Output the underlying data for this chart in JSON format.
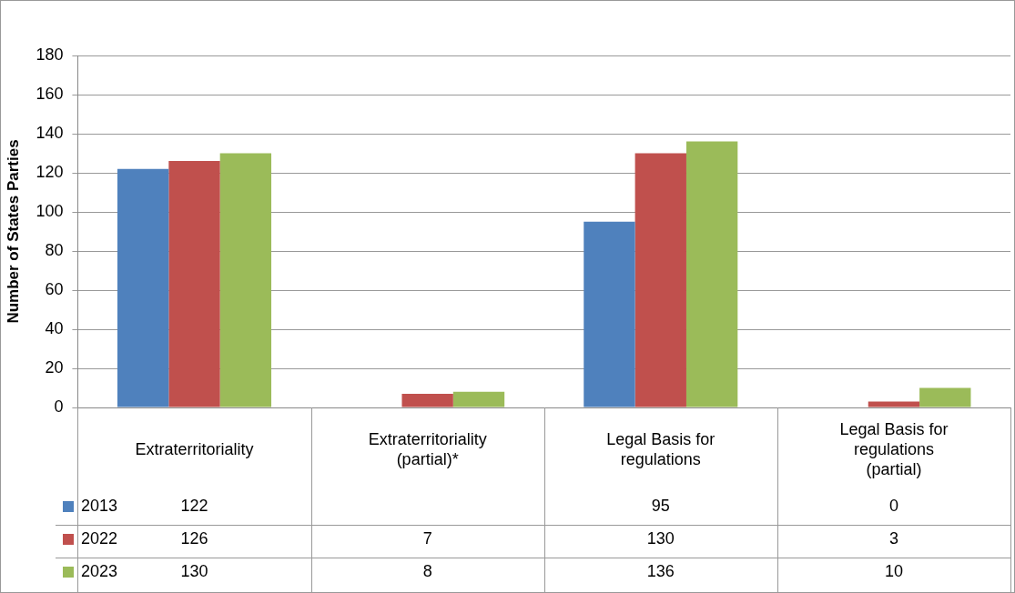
{
  "chart_data": {
    "type": "bar",
    "ylabel": "Number of States Parties",
    "categories": [
      "Extraterritoriality",
      "Extraterritoriality (partial)*",
      "Legal Basis for regulations",
      "Legal Basis for regulations (partial)"
    ],
    "series": [
      {
        "name": "2013",
        "color": "#4f81bd",
        "values": [
          122,
          null,
          95,
          0
        ]
      },
      {
        "name": "2022",
        "color": "#c0504d",
        "values": [
          126,
          7,
          130,
          3
        ]
      },
      {
        "name": "2023",
        "color": "#9bbb59",
        "values": [
          130,
          8,
          136,
          10
        ]
      }
    ],
    "ylim": [
      0,
      180
    ],
    "yticks": [
      0,
      20,
      40,
      60,
      80,
      100,
      120,
      140,
      160,
      180
    ],
    "grid": "y",
    "legend": "bottom",
    "data_labels": true
  }
}
